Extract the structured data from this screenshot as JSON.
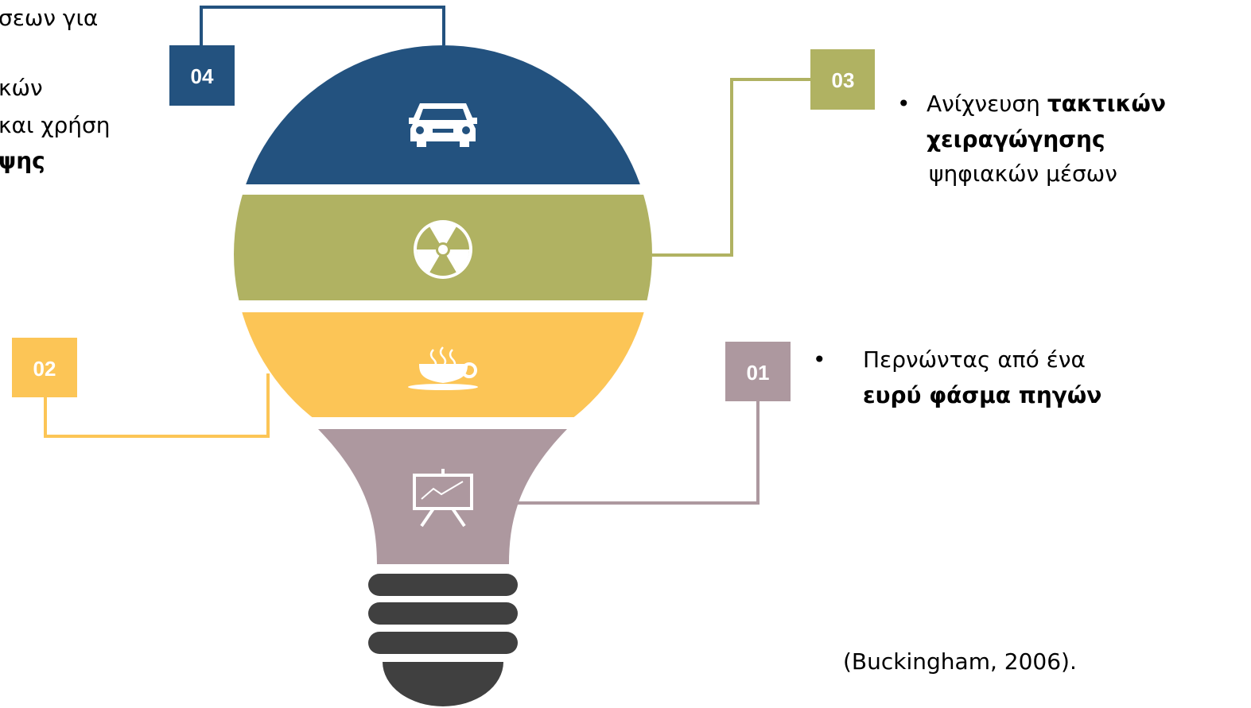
{
  "left_text": {
    "lines": [
      "σεων για",
      "κών",
      "και χρήση",
      "ψης"
    ]
  },
  "steps": [
    {
      "number": "04"
    },
    {
      "number": "03",
      "bullet": "•",
      "lines": [
        [
          "Ανίχνευση ",
          "τακτικών"
        ],
        [
          "χειραγώγησης"
        ],
        [
          "ψηφιακών μέσων"
        ]
      ]
    },
    {
      "number": "02"
    },
    {
      "number": "01",
      "bullet": "•",
      "lines": [
        [
          "Περνώντας από ένα"
        ],
        [
          "ευρύ φάσμα πηγών"
        ]
      ]
    }
  ],
  "citation": "(Buckingham, 2006)."
}
